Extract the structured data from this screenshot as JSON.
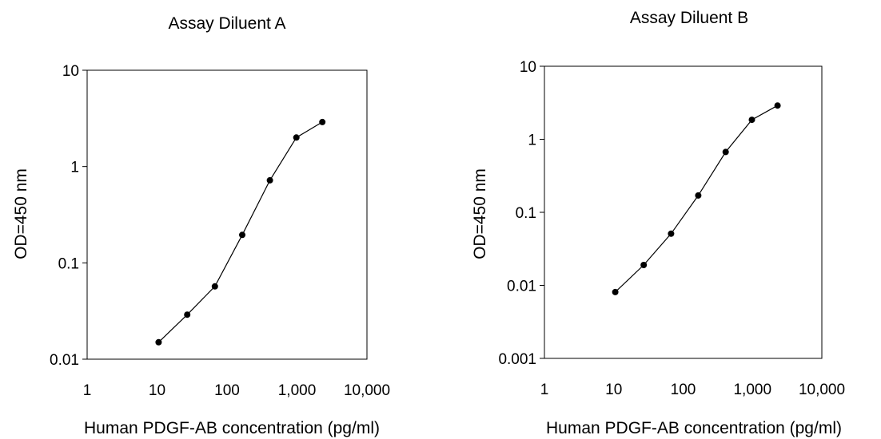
{
  "chart_data": [
    {
      "type": "line",
      "title": "Assay Diluent A",
      "xlabel": "Human PDGF-AB concentration (pg/ml)",
      "ylabel": "OD=450 nm",
      "x_scale": "log",
      "y_scale": "log",
      "xlim": [
        1,
        10000
      ],
      "ylim": [
        0.01,
        10
      ],
      "x_ticks": [
        1,
        10,
        100,
        1000,
        10000
      ],
      "x_tick_labels": [
        "1",
        "10",
        "100",
        "1,000",
        "10,000"
      ],
      "y_ticks": [
        0.01,
        0.1,
        1,
        10
      ],
      "y_tick_labels": [
        "0.01",
        "0.1",
        "1",
        "10"
      ],
      "grid": false,
      "series": [
        {
          "x": [
            10.5,
            27,
            67,
            165,
            410,
            980,
            2300
          ],
          "y": [
            0.015,
            0.029,
            0.057,
            0.195,
            0.72,
            2.0,
            2.9
          ]
        }
      ]
    },
    {
      "type": "line",
      "title": "Assay Diluent B",
      "xlabel": "Human PDGF-AB concentration (pg/ml)",
      "ylabel": "OD=450 nm",
      "x_scale": "log",
      "y_scale": "log",
      "xlim": [
        1,
        10000
      ],
      "ylim": [
        0.001,
        10
      ],
      "x_ticks": [
        1,
        10,
        100,
        1000,
        10000
      ],
      "x_tick_labels": [
        "1",
        "10",
        "100",
        "1,000",
        "10,000"
      ],
      "y_ticks": [
        0.001,
        0.01,
        0.1,
        1,
        10
      ],
      "y_tick_labels": [
        "0.001",
        "0.01",
        "0.1",
        "1",
        "10"
      ],
      "grid": false,
      "series": [
        {
          "x": [
            10.5,
            27,
            67,
            165,
            410,
            980,
            2300
          ],
          "y": [
            0.0081,
            0.019,
            0.051,
            0.17,
            0.67,
            1.85,
            2.9
          ]
        }
      ]
    }
  ]
}
